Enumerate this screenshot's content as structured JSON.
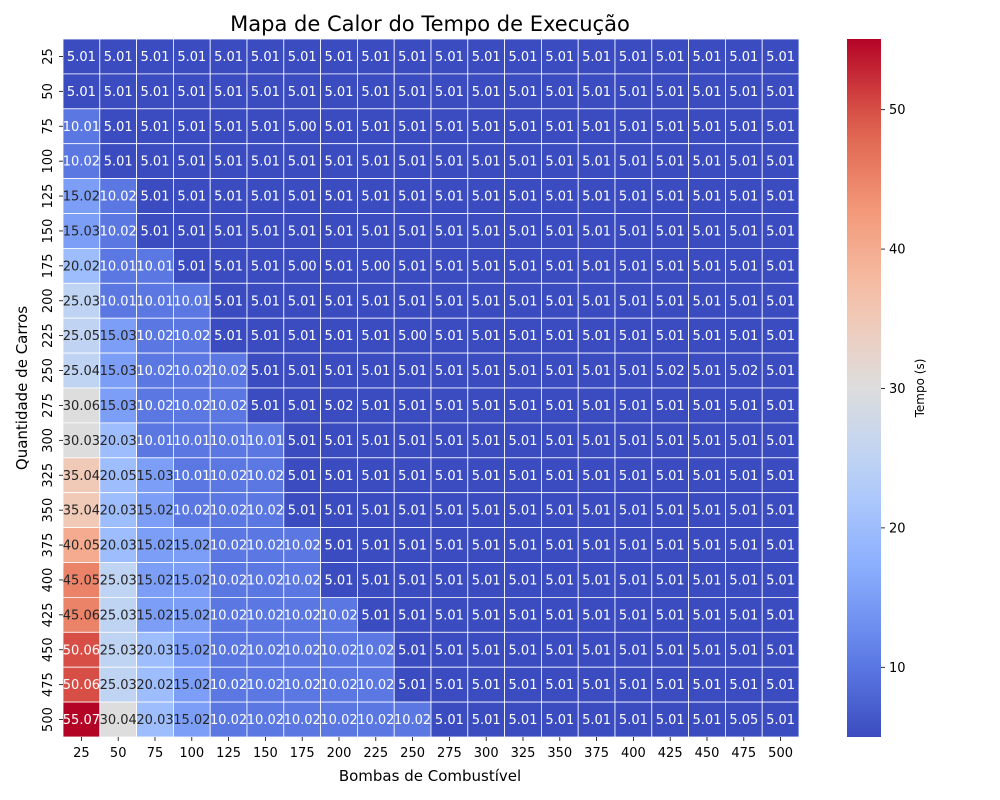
{
  "chart_data": {
    "type": "heatmap",
    "title": "Mapa de Calor do Tempo de Execução",
    "xlabel": "Bombas de Combustível",
    "ylabel": "Quantidade de Carros",
    "colorbar_label": "Tempo (s)",
    "colormap": "coolwarm",
    "value_range": [
      5.0,
      55.07
    ],
    "colorbar_ticks": [
      10,
      20,
      30,
      40,
      50
    ],
    "x": [
      "25",
      "50",
      "75",
      "100",
      "125",
      "150",
      "175",
      "200",
      "225",
      "250",
      "275",
      "300",
      "325",
      "350",
      "375",
      "400",
      "425",
      "450",
      "475",
      "500"
    ],
    "y": [
      "25",
      "50",
      "75",
      "100",
      "125",
      "150",
      "175",
      "200",
      "225",
      "250",
      "275",
      "300",
      "325",
      "350",
      "375",
      "400",
      "425",
      "450",
      "475",
      "500"
    ],
    "values": [
      [
        5.01,
        5.01,
        5.01,
        5.01,
        5.01,
        5.01,
        5.01,
        5.01,
        5.01,
        5.01,
        5.01,
        5.01,
        5.01,
        5.01,
        5.01,
        5.01,
        5.01,
        5.01,
        5.01,
        5.01
      ],
      [
        5.01,
        5.01,
        5.01,
        5.01,
        5.01,
        5.01,
        5.01,
        5.01,
        5.01,
        5.01,
        5.01,
        5.01,
        5.01,
        5.01,
        5.01,
        5.01,
        5.01,
        5.01,
        5.01,
        5.01
      ],
      [
        10.01,
        5.01,
        5.01,
        5.01,
        5.01,
        5.01,
        5.0,
        5.01,
        5.01,
        5.01,
        5.01,
        5.01,
        5.01,
        5.01,
        5.01,
        5.01,
        5.01,
        5.01,
        5.01,
        5.01
      ],
      [
        10.02,
        5.01,
        5.01,
        5.01,
        5.01,
        5.01,
        5.01,
        5.01,
        5.01,
        5.01,
        5.01,
        5.01,
        5.01,
        5.01,
        5.01,
        5.01,
        5.01,
        5.01,
        5.01,
        5.01
      ],
      [
        15.02,
        10.02,
        5.01,
        5.01,
        5.01,
        5.01,
        5.01,
        5.01,
        5.01,
        5.01,
        5.01,
        5.01,
        5.01,
        5.01,
        5.01,
        5.01,
        5.01,
        5.01,
        5.01,
        5.01
      ],
      [
        15.03,
        10.02,
        5.01,
        5.01,
        5.01,
        5.01,
        5.01,
        5.01,
        5.01,
        5.01,
        5.01,
        5.01,
        5.01,
        5.01,
        5.01,
        5.01,
        5.01,
        5.01,
        5.01,
        5.01
      ],
      [
        20.02,
        10.01,
        10.01,
        5.01,
        5.01,
        5.01,
        5.0,
        5.01,
        5.0,
        5.01,
        5.01,
        5.01,
        5.01,
        5.01,
        5.01,
        5.01,
        5.01,
        5.01,
        5.01,
        5.01
      ],
      [
        25.03,
        10.01,
        10.01,
        10.01,
        5.01,
        5.01,
        5.01,
        5.01,
        5.01,
        5.01,
        5.01,
        5.01,
        5.01,
        5.01,
        5.01,
        5.01,
        5.01,
        5.01,
        5.01,
        5.01
      ],
      [
        25.05,
        15.03,
        10.02,
        10.02,
        5.01,
        5.01,
        5.01,
        5.01,
        5.01,
        5.0,
        5.01,
        5.01,
        5.01,
        5.01,
        5.01,
        5.01,
        5.01,
        5.01,
        5.01,
        5.01
      ],
      [
        25.04,
        15.03,
        10.02,
        10.02,
        10.02,
        5.01,
        5.01,
        5.01,
        5.01,
        5.01,
        5.01,
        5.01,
        5.01,
        5.01,
        5.01,
        5.01,
        5.02,
        5.01,
        5.02,
        5.01
      ],
      [
        30.06,
        15.03,
        10.02,
        10.02,
        10.02,
        5.01,
        5.01,
        5.02,
        5.01,
        5.01,
        5.01,
        5.01,
        5.01,
        5.01,
        5.01,
        5.01,
        5.01,
        5.01,
        5.01,
        5.01
      ],
      [
        30.03,
        20.03,
        10.01,
        10.01,
        10.01,
        10.01,
        5.01,
        5.01,
        5.01,
        5.01,
        5.01,
        5.01,
        5.01,
        5.01,
        5.01,
        5.01,
        5.01,
        5.01,
        5.01,
        5.01
      ],
      [
        35.04,
        20.05,
        15.03,
        10.01,
        10.02,
        10.02,
        5.01,
        5.01,
        5.01,
        5.01,
        5.01,
        5.01,
        5.01,
        5.01,
        5.01,
        5.01,
        5.01,
        5.01,
        5.01,
        5.01
      ],
      [
        35.04,
        20.03,
        15.02,
        10.02,
        10.02,
        10.02,
        5.01,
        5.01,
        5.01,
        5.01,
        5.01,
        5.01,
        5.01,
        5.01,
        5.01,
        5.01,
        5.01,
        5.01,
        5.01,
        5.01
      ],
      [
        40.05,
        20.03,
        15.02,
        15.02,
        10.02,
        10.02,
        10.02,
        5.01,
        5.01,
        5.01,
        5.01,
        5.01,
        5.01,
        5.01,
        5.01,
        5.01,
        5.01,
        5.01,
        5.01,
        5.01
      ],
      [
        45.05,
        25.03,
        15.02,
        15.02,
        10.02,
        10.02,
        10.02,
        5.01,
        5.01,
        5.01,
        5.01,
        5.01,
        5.01,
        5.01,
        5.01,
        5.01,
        5.01,
        5.01,
        5.01,
        5.01
      ],
      [
        45.06,
        25.03,
        15.02,
        15.02,
        10.02,
        10.02,
        10.02,
        10.02,
        5.01,
        5.01,
        5.01,
        5.01,
        5.01,
        5.01,
        5.01,
        5.01,
        5.01,
        5.01,
        5.01,
        5.01
      ],
      [
        50.06,
        25.03,
        20.03,
        15.02,
        10.02,
        10.02,
        10.02,
        10.02,
        10.02,
        5.01,
        5.01,
        5.01,
        5.01,
        5.01,
        5.01,
        5.01,
        5.01,
        5.01,
        5.01,
        5.01
      ],
      [
        50.06,
        25.03,
        20.02,
        15.02,
        10.02,
        10.02,
        10.02,
        10.02,
        10.02,
        5.01,
        5.01,
        5.01,
        5.01,
        5.01,
        5.01,
        5.01,
        5.01,
        5.01,
        5.01,
        5.01
      ],
      [
        55.07,
        30.04,
        20.03,
        15.02,
        10.02,
        10.02,
        10.02,
        10.02,
        10.02,
        10.02,
        5.01,
        5.01,
        5.01,
        5.01,
        5.01,
        5.01,
        5.01,
        5.01,
        5.05,
        5.01
      ]
    ]
  }
}
